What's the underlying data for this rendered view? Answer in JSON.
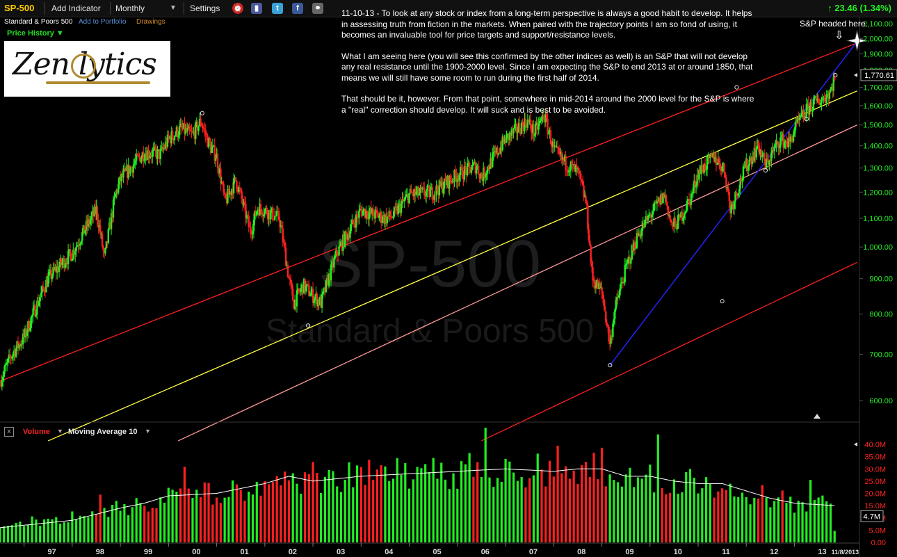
{
  "toolbar": {
    "symbol": "SP-500",
    "add_indicator": "Add Indicator",
    "period": "Monthly",
    "period_arrow": "▼",
    "settings": "Settings",
    "change": "↑ 23.46 (1.34%)"
  },
  "subbar": {
    "name": "Standard & Poors 500",
    "add_portfolio": "Add to Portfolio",
    "drawings": "Drawings"
  },
  "price_history": "Price History ▼",
  "logo": {
    "text": "Zen lytics"
  },
  "watermark": {
    "symbol": "SP-500",
    "name": "Standard & Poors 500"
  },
  "annotation": {
    "p1": "11-10-13 - To look at any stock or index from a long-term perspective is always a good habit to develop. It helps in assessing truth from fiction in the markets. When paired with the trajectory points I am so fond of using, it becomes an invaluable tool for price targets and support/resistance levels.",
    "p2": "What I am seeing here (you will see this confirmed by the other indices as well) is an S&P that will not develop any real resistance until the 1900-2000 level. Since I am expecting the S&P to end 2013 at or around 1850, that means we will still have some room to run during the first half of 2014.",
    "p3": "That should be it, however. From that point, somewhere in mid-2014 around the 2000 level for the S&P is where a \"real\" correction should develop. It will suck and is best to be avoided.",
    "star_label": "S&P headed here.",
    "star_arrow": "⇩"
  },
  "volume_panel": {
    "close": "x",
    "label": "Volume",
    "dropdown": "▼",
    "ma_label": "Moving Average 10",
    "ma_dropdown": "▼"
  },
  "colors": {
    "up": "#22ee22",
    "down": "#ff2020",
    "channel_red": "#ff2020",
    "channel_yellow": "#ffff44",
    "channel_pink": "#ff9999",
    "trend_blue": "#2222ff",
    "price_axis": "#22ee22",
    "volume_axis": "#ff2222"
  },
  "chart_data": {
    "type": "candlestick",
    "log_scale": true,
    "price_axis": {
      "ticks": [
        600,
        700,
        800,
        900,
        1000,
        1100,
        1200,
        1300,
        1400,
        1500,
        1600,
        1700,
        1800,
        1900,
        2000,
        2100
      ],
      "labels": [
        "600.00",
        "700.00",
        "800.00",
        "900.00",
        "1,000.00",
        "1,100.00",
        "1,200.00",
        "1,300.00",
        "1,400.00",
        "1,500.00",
        "1,600.00",
        "1,700.00",
        "1,800.00",
        "1,900.00",
        "2,000.00",
        "2,100.00"
      ],
      "last_price": 1770.61,
      "last_price_label": "1,770.61"
    },
    "x_axis": {
      "labels": [
        "97",
        "98",
        "99",
        "00",
        "01",
        "02",
        "03",
        "04",
        "05",
        "06",
        "07",
        "08",
        "09",
        "10",
        "11",
        "12",
        "13",
        "11/8/2013"
      ],
      "dates": [
        1997.0,
        1998.0,
        1999.0,
        2000.0,
        2001.0,
        2002.0,
        2003.0,
        2004.0,
        2005.0,
        2006.0,
        2007.0,
        2008.0,
        2009.0,
        2010.0,
        2011.0,
        2012.0,
        2013.0,
        2013.85
      ]
    },
    "price_path": [
      [
        1996.5,
        640
      ],
      [
        1996.75,
        700
      ],
      [
        1997.0,
        740
      ],
      [
        1997.5,
        900
      ],
      [
        1997.8,
        950
      ],
      [
        1998.0,
        980
      ],
      [
        1998.5,
        1130
      ],
      [
        1998.67,
        960
      ],
      [
        1998.9,
        1190
      ],
      [
        1999.0,
        1250
      ],
      [
        1999.5,
        1370
      ],
      [
        1999.83,
        1360
      ],
      [
        2000.0,
        1430
      ],
      [
        2000.25,
        1480
      ],
      [
        2000.5,
        1450
      ],
      [
        2000.67,
        1520
      ],
      [
        2000.85,
        1400
      ],
      [
        2001.0,
        1350
      ],
      [
        2001.17,
        1160
      ],
      [
        2001.4,
        1250
      ],
      [
        2001.7,
        1050
      ],
      [
        2001.85,
        1140
      ],
      [
        2002.0,
        1130
      ],
      [
        2002.3,
        1100
      ],
      [
        2002.5,
        900
      ],
      [
        2002.6,
        830
      ],
      [
        2002.8,
        880
      ],
      [
        2003.0,
        850
      ],
      [
        2003.17,
        830
      ],
      [
        2003.5,
        980
      ],
      [
        2004.0,
        1130
      ],
      [
        2004.5,
        1100
      ],
      [
        2004.67,
        1110
      ],
      [
        2005.0,
        1190
      ],
      [
        2005.5,
        1200
      ],
      [
        2006.0,
        1270
      ],
      [
        2006.4,
        1310
      ],
      [
        2006.5,
        1260
      ],
      [
        2007.0,
        1430
      ],
      [
        2007.45,
        1520
      ],
      [
        2007.6,
        1460
      ],
      [
        2007.8,
        1550
      ],
      [
        2008.0,
        1380
      ],
      [
        2008.2,
        1330
      ],
      [
        2008.5,
        1280
      ],
      [
        2008.67,
        1160
      ],
      [
        2008.8,
        900
      ],
      [
        2009.0,
        860
      ],
      [
        2009.17,
        720
      ],
      [
        2009.25,
        800
      ],
      [
        2009.5,
        930
      ],
      [
        2009.75,
        1040
      ],
      [
        2010.0,
        1110
      ],
      [
        2010.3,
        1190
      ],
      [
        2010.45,
        1070
      ],
      [
        2010.6,
        1090
      ],
      [
        2010.85,
        1180
      ],
      [
        2011.0,
        1280
      ],
      [
        2011.33,
        1350
      ],
      [
        2011.55,
        1290
      ],
      [
        2011.67,
        1130
      ],
      [
        2011.85,
        1230
      ],
      [
        2012.0,
        1310
      ],
      [
        2012.25,
        1400
      ],
      [
        2012.4,
        1310
      ],
      [
        2012.7,
        1430
      ],
      [
        2012.9,
        1410
      ],
      [
        2013.0,
        1480
      ],
      [
        2013.33,
        1600
      ],
      [
        2013.6,
        1640
      ],
      [
        2013.75,
        1680
      ],
      [
        2013.85,
        1770
      ]
    ],
    "channels": [
      {
        "name": "red upper",
        "color": "red",
        "from": [
          1996.5,
          640
        ],
        "to": [
          2014.3,
          1970
        ]
      },
      {
        "name": "yellow",
        "color": "yellow",
        "from": [
          1997.5,
          525
        ],
        "to": [
          2014.3,
          1680
        ]
      },
      {
        "name": "pink",
        "color": "pink",
        "from": [
          2000.2,
          525
        ],
        "to": [
          2014.3,
          1500
        ]
      },
      {
        "name": "red lower",
        "color": "red",
        "from": [
          2006.5,
          525
        ],
        "to": [
          2014.3,
          950
        ]
      }
    ],
    "trend_line": {
      "color": "blue",
      "from": [
        2009.17,
        675
      ],
      "to": [
        2014.3,
        1980
      ]
    },
    "target_marker": [
      2014.3,
      1985
    ],
    "markers": [
      [
        2000.7,
        1560
      ],
      [
        2002.9,
        770
      ],
      [
        2009.17,
        675
      ],
      [
        2011.8,
        1700
      ],
      [
        2012.4,
        1290
      ],
      [
        2013.25,
        1530
      ],
      [
        2013.85,
        1770
      ],
      [
        2011.5,
        835
      ]
    ],
    "volume_axis": {
      "ticks": [
        0,
        5,
        10,
        15,
        20,
        25,
        30,
        35,
        40
      ],
      "labels": [
        "0.00",
        "5.0M",
        "10.0M",
        "15.0M",
        "20.0M",
        "25.0M",
        "30.0M",
        "35.0M",
        "40.0M"
      ],
      "last_volume": 4.7,
      "last_volume_label": "4.7M"
    },
    "volume_profile": [
      [
        1996.5,
        6
      ],
      [
        1997.0,
        7
      ],
      [
        1998.0,
        9
      ],
      [
        1999.0,
        14
      ],
      [
        1999.5,
        16
      ],
      [
        2000.0,
        19
      ],
      [
        2001.0,
        20
      ],
      [
        2001.5,
        22
      ],
      [
        2002.0,
        24
      ],
      [
        2002.5,
        27
      ],
      [
        2003.0,
        25
      ],
      [
        2004.0,
        27
      ],
      [
        2005.0,
        28
      ],
      [
        2006.0,
        29
      ],
      [
        2007.0,
        30
      ],
      [
        2008.0,
        29
      ],
      [
        2008.5,
        30
      ],
      [
        2009.0,
        30
      ],
      [
        2009.5,
        27
      ],
      [
        2010.0,
        27
      ],
      [
        2010.5,
        25
      ],
      [
        2011.0,
        24
      ],
      [
        2011.5,
        24
      ],
      [
        2012.0,
        21
      ],
      [
        2012.5,
        18
      ],
      [
        2013.0,
        16
      ],
      [
        2013.85,
        15
      ]
    ]
  }
}
